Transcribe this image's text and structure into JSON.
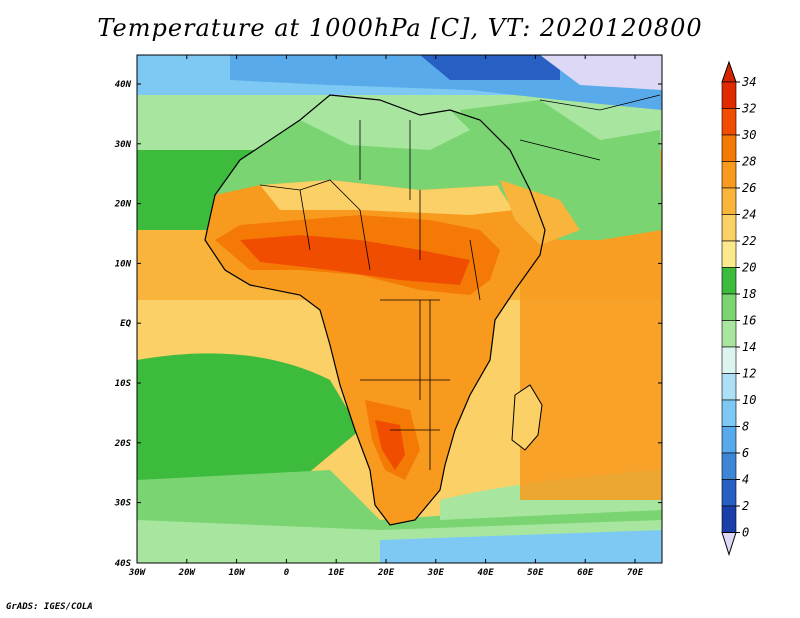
{
  "title": "Temperature at 1000hPa [C], VT: 2020120800",
  "credit": "GrADS: IGES/COLA",
  "colorbar": {
    "labels": [
      "34",
      "32",
      "30",
      "28",
      "26",
      "24",
      "22",
      "20",
      "18",
      "16",
      "14",
      "12",
      "10",
      "8",
      "6",
      "4",
      "2",
      "0"
    ],
    "colors": [
      "#e02a00",
      "#f04d00",
      "#f57a05",
      "#f89a1e",
      "#f9b43c",
      "#fad067",
      "#fbe98e",
      "#3dbb3d",
      "#79d471",
      "#a8e6a0",
      "#dcf5f0",
      "#aee0f5",
      "#7ec9f4",
      "#58aaea",
      "#3d86d6",
      "#2760c2",
      "#1a3fa8",
      "#0d1e7f"
    ],
    "over_color": "#d42500",
    "under_color": "#ddd8f5"
  },
  "axes": {
    "lon_labels": [
      "30W",
      "20W",
      "10W",
      "0",
      "10E",
      "20E",
      "30E",
      "40E",
      "50E",
      "60E",
      "70E"
    ],
    "lat_labels": [
      "40N",
      "30N",
      "20N",
      "10N",
      "EQ",
      "10S",
      "20S",
      "30S",
      "40S"
    ]
  },
  "map": {
    "ocean_color": "#fad067",
    "land_regions": [
      {
        "name": "north-africa-desert",
        "color": "#79d471"
      },
      {
        "name": "sahel-hot",
        "color": "#f57a05"
      },
      {
        "name": "southern-africa",
        "color": "#f89a1e"
      }
    ]
  }
}
